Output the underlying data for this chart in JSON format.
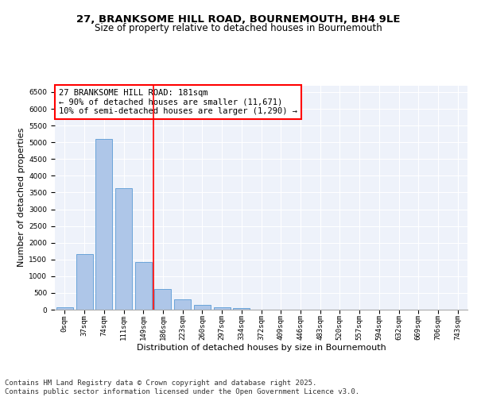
{
  "title_line1": "27, BRANKSOME HILL ROAD, BOURNEMOUTH, BH4 9LE",
  "title_line2": "Size of property relative to detached houses in Bournemouth",
  "xlabel": "Distribution of detached houses by size in Bournemouth",
  "ylabel": "Number of detached properties",
  "bar_labels": [
    "0sqm",
    "37sqm",
    "74sqm",
    "111sqm",
    "149sqm",
    "186sqm",
    "223sqm",
    "260sqm",
    "297sqm",
    "334sqm",
    "372sqm",
    "409sqm",
    "446sqm",
    "483sqm",
    "520sqm",
    "557sqm",
    "594sqm",
    "632sqm",
    "669sqm",
    "706sqm",
    "743sqm"
  ],
  "bar_values": [
    75,
    1650,
    5100,
    3620,
    1420,
    620,
    310,
    145,
    75,
    45,
    10,
    5,
    0,
    0,
    0,
    0,
    0,
    0,
    0,
    0,
    0
  ],
  "bar_color": "#aec6e8",
  "bar_edge_color": "#5b9bd5",
  "vline_color": "red",
  "annotation_text": "27 BRANKSOME HILL ROAD: 181sqm\n← 90% of detached houses are smaller (11,671)\n10% of semi-detached houses are larger (1,290) →",
  "annotation_box_color": "red",
  "ylim": [
    0,
    6700
  ],
  "yticks": [
    0,
    500,
    1000,
    1500,
    2000,
    2500,
    3000,
    3500,
    4000,
    4500,
    5000,
    5500,
    6000,
    6500
  ],
  "background_color": "#eef2fa",
  "grid_color": "#ffffff",
  "footer_text": "Contains HM Land Registry data © Crown copyright and database right 2025.\nContains public sector information licensed under the Open Government Licence v3.0.",
  "title_fontsize": 9.5,
  "subtitle_fontsize": 8.5,
  "axis_label_fontsize": 8,
  "tick_fontsize": 6.5,
  "annotation_fontsize": 7.5,
  "footer_fontsize": 6.5
}
